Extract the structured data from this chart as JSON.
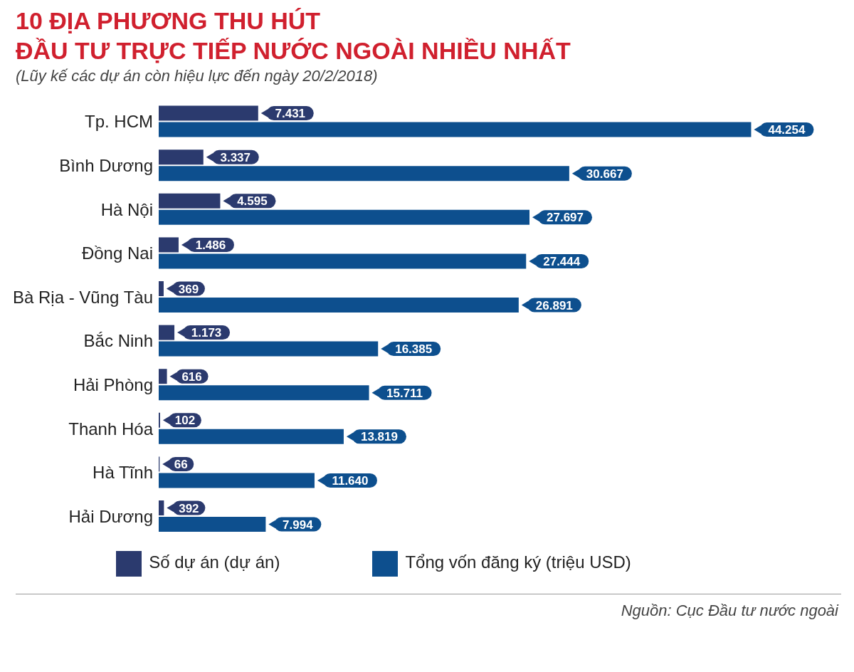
{
  "chart_data": {
    "type": "bar",
    "orientation": "horizontal",
    "title": "10 ĐỊA PHƯƠNG THU HÚT ĐẦU TƯ TRỰC TIẾP NƯỚC NGOÀI NHIỀU NHẤT",
    "subtitle": "(Lũy kế các dự án còn hiệu lực đến ngày 20/2/2018)",
    "categories": [
      "Tp. HCM",
      "Bình Dương",
      "Hà Nội",
      "Đồng Nai",
      "Bà Rịa - Vũng Tàu",
      "Bắc Ninh",
      "Hải Phòng",
      "Thanh Hóa",
      "Hà Tĩnh",
      "Hải Dương"
    ],
    "series": [
      {
        "name": "Số dự án (dự án)",
        "color": "#2b3a6e",
        "values": [
          7431,
          3337,
          4595,
          1486,
          369,
          1173,
          616,
          102,
          66,
          392
        ],
        "value_labels": [
          "7.431",
          "3.337",
          "4.595",
          "1.486",
          "369",
          "1.173",
          "616",
          "102",
          "66",
          "392"
        ]
      },
      {
        "name": "Tổng vốn đăng ký (triệu USD)",
        "color": "#0d4f8e",
        "values": [
          44254,
          30667,
          27697,
          27444,
          26891,
          16385,
          15711,
          13819,
          11640,
          7994
        ],
        "value_labels": [
          "44.254",
          "30.667",
          "27.697",
          "27.444",
          "26.891",
          "16.385",
          "15.711",
          "13.819",
          "11.640",
          "7.994"
        ]
      }
    ],
    "tick_labels": "y",
    "legend": "bottom",
    "annotations": [
      "Nguồn: Cục Đầu tư nước ngoài"
    ]
  }
}
